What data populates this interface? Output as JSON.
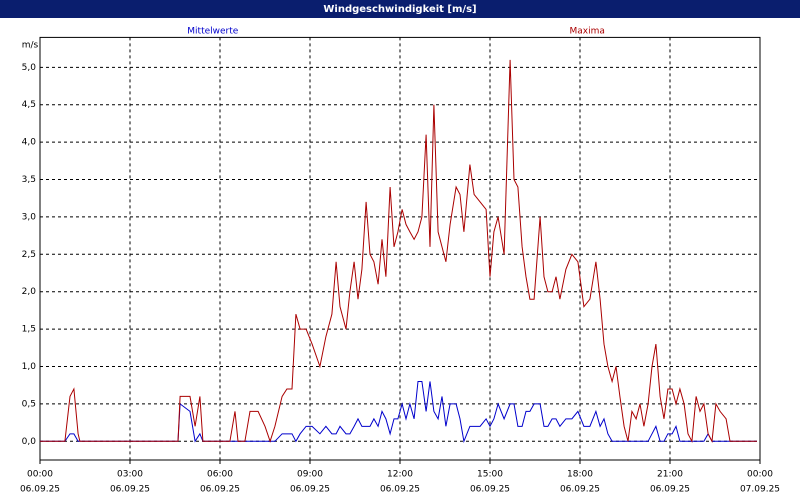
{
  "chart_data": {
    "type": "line",
    "title": "Windgeschwindigkeit [m/s]",
    "y_label": "m/s",
    "x": [
      0,
      0.83,
      1.0,
      1.13,
      1.27,
      1.33,
      4.6,
      4.67,
      5.0,
      5.17,
      5.33,
      5.43,
      6.33,
      6.5,
      6.6,
      6.83,
      7.0,
      7.27,
      7.5,
      7.67,
      7.83,
      8.07,
      8.23,
      8.4,
      8.53,
      8.67,
      8.87,
      9.07,
      9.33,
      9.53,
      9.73,
      9.87,
      10.0,
      10.2,
      10.33,
      10.47,
      10.6,
      10.73,
      10.87,
      11.0,
      11.13,
      11.27,
      11.4,
      11.53,
      11.67,
      11.8,
      11.93,
      12.07,
      12.2,
      12.33,
      12.47,
      12.6,
      12.73,
      12.87,
      13.0,
      13.13,
      13.27,
      13.4,
      13.53,
      13.67,
      13.87,
      14.0,
      14.13,
      14.33,
      14.47,
      14.67,
      14.87,
      15.0,
      15.13,
      15.27,
      15.47,
      15.67,
      15.8,
      15.93,
      16.07,
      16.2,
      16.33,
      16.47,
      16.67,
      16.8,
      16.93,
      17.07,
      17.2,
      17.33,
      17.53,
      17.73,
      17.93,
      18.13,
      18.33,
      18.53,
      18.67,
      18.8,
      18.93,
      19.07,
      19.2,
      19.33,
      19.47,
      19.6,
      19.73,
      19.87,
      20.0,
      20.13,
      20.27,
      20.4,
      20.53,
      20.67,
      20.8,
      20.93,
      21.07,
      21.2,
      21.33,
      21.47,
      21.6,
      21.73,
      21.87,
      22.0,
      22.13,
      22.27,
      22.4,
      22.53,
      22.67,
      22.87,
      23.0,
      23.2,
      23.9
    ],
    "series": [
      {
        "name": "Mittelwerte",
        "color": "#0000cc",
        "values": [
          0,
          0,
          0.1,
          0.1,
          0,
          0,
          0,
          0.5,
          0.4,
          0,
          0.1,
          0,
          0,
          0,
          0,
          0,
          0,
          0,
          0,
          0,
          0,
          0.1,
          0.1,
          0.1,
          0,
          0.1,
          0.2,
          0.2,
          0.1,
          0.2,
          0.1,
          0.1,
          0.2,
          0.1,
          0.1,
          0.2,
          0.3,
          0.2,
          0.2,
          0.2,
          0.3,
          0.2,
          0.4,
          0.3,
          0.1,
          0.3,
          0.3,
          0.5,
          0.3,
          0.5,
          0.3,
          0.8,
          0.8,
          0.4,
          0.8,
          0.4,
          0.3,
          0.6,
          0.2,
          0.5,
          0.5,
          0.3,
          0,
          0.2,
          0.2,
          0.2,
          0.3,
          0.2,
          0.3,
          0.5,
          0.3,
          0.5,
          0.5,
          0.2,
          0.2,
          0.4,
          0.4,
          0.5,
          0.5,
          0.2,
          0.2,
          0.3,
          0.3,
          0.2,
          0.3,
          0.3,
          0.4,
          0.2,
          0.2,
          0.4,
          0.2,
          0.3,
          0.1,
          0,
          0,
          0,
          0,
          0,
          0,
          0,
          0,
          0,
          0,
          0.1,
          0.2,
          0,
          0,
          0.1,
          0.1,
          0.2,
          0,
          0,
          0,
          0,
          0,
          0,
          0,
          0.1,
          0,
          0,
          0,
          0,
          0,
          0,
          0
        ]
      },
      {
        "name": "Maxima",
        "color": "#aa0000",
        "values": [
          0,
          0,
          0.6,
          0.7,
          0.1,
          0,
          0,
          0.6,
          0.6,
          0.2,
          0.6,
          0,
          0,
          0.4,
          0,
          0,
          0.4,
          0.4,
          0.2,
          0,
          0.2,
          0.6,
          0.7,
          0.7,
          1.7,
          1.5,
          1.5,
          1.3,
          1.0,
          1.4,
          1.7,
          2.4,
          1.8,
          1.5,
          2.0,
          2.4,
          1.9,
          2.3,
          3.2,
          2.5,
          2.4,
          2.1,
          2.7,
          2.2,
          3.4,
          2.6,
          2.8,
          3.1,
          2.9,
          2.8,
          2.7,
          2.8,
          3.0,
          4.1,
          2.6,
          4.5,
          2.8,
          2.6,
          2.4,
          2.9,
          3.4,
          3.3,
          2.8,
          3.7,
          3.3,
          3.2,
          3.1,
          2.2,
          2.8,
          3.0,
          2.5,
          5.1,
          3.5,
          3.4,
          2.6,
          2.2,
          1.9,
          1.9,
          3.0,
          2.2,
          2.0,
          2.0,
          2.2,
          1.9,
          2.3,
          2.5,
          2.4,
          1.8,
          1.9,
          2.4,
          1.9,
          1.3,
          1.0,
          0.8,
          1.0,
          0.6,
          0.2,
          0,
          0.4,
          0.3,
          0.5,
          0.2,
          0.5,
          1.0,
          1.3,
          0.6,
          0.3,
          0.7,
          0.7,
          0.5,
          0.7,
          0.5,
          0.1,
          0,
          0.6,
          0.4,
          0.5,
          0.1,
          0,
          0.5,
          0.4,
          0.3,
          0,
          0,
          0
        ]
      }
    ],
    "xlim": [
      0,
      24
    ],
    "xticks": [
      {
        "value": 0,
        "label": "00:00",
        "date": "06.09.25"
      },
      {
        "value": 3,
        "label": "03:00",
        "date": "06.09.25"
      },
      {
        "value": 6,
        "label": "06:00",
        "date": "06.09.25"
      },
      {
        "value": 9,
        "label": "09:00",
        "date": "06.09.25"
      },
      {
        "value": 12,
        "label": "12:00",
        "date": "06.09.25"
      },
      {
        "value": 15,
        "label": "15:00",
        "date": "06.09.25"
      },
      {
        "value": 18,
        "label": "18:00",
        "date": "06.09.25"
      },
      {
        "value": 21,
        "label": "21:00",
        "date": "06.09.25"
      },
      {
        "value": 24,
        "label": "00:00",
        "date": "07.09.25"
      }
    ],
    "ylim": [
      -0.25,
      5.4
    ],
    "yticks": [
      {
        "value": 0,
        "label": "0,0"
      },
      {
        "value": 0.5,
        "label": "0,5"
      },
      {
        "value": 1,
        "label": "1,0"
      },
      {
        "value": 1.5,
        "label": "1,5"
      },
      {
        "value": 2,
        "label": "2,0"
      },
      {
        "value": 2.5,
        "label": "2,5"
      },
      {
        "value": 3,
        "label": "3,0"
      },
      {
        "value": 3.5,
        "label": "3,5"
      },
      {
        "value": 4,
        "label": "4,0"
      },
      {
        "value": 4.5,
        "label": "4,5"
      },
      {
        "value": 5,
        "label": "5,0"
      }
    ],
    "grid": true
  }
}
